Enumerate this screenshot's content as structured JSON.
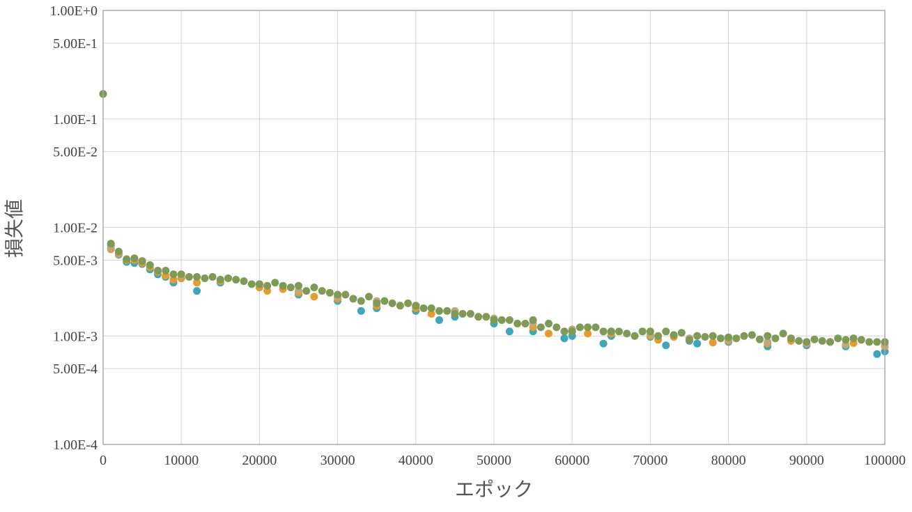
{
  "chart_data": {
    "type": "scatter",
    "xlabel": "エポック",
    "ylabel": "損失値",
    "xlim": [
      0,
      100000
    ],
    "ylim": [
      0.0001,
      1.0
    ],
    "y_scale": "log",
    "grid": true,
    "legend": "none",
    "x_ticks": [
      0,
      10000,
      20000,
      30000,
      40000,
      50000,
      60000,
      70000,
      80000,
      90000,
      100000
    ],
    "x_tick_labels": [
      "0",
      "10000",
      "20000",
      "30000",
      "40000",
      "50000",
      "60000",
      "70000",
      "80000",
      "90000",
      "100000"
    ],
    "y_ticks": [
      1.0,
      0.5,
      0.1,
      0.05,
      0.01,
      0.005,
      0.001,
      0.0005,
      0.0001
    ],
    "y_tick_labels": [
      "1.00E+0",
      "5.00E-1",
      "1.00E-1",
      "5.00E-2",
      "1.00E-2",
      "5.00E-3",
      "1.00E-3",
      "5.00E-4",
      "1.00E-4"
    ],
    "series": [
      {
        "color": "#3aa7be",
        "x": [
          0,
          1000,
          2000,
          3000,
          4000,
          5000,
          6000,
          7000,
          8000,
          9000,
          10000,
          12000,
          15000,
          20000,
          25000,
          30000,
          33000,
          35000,
          40000,
          43000,
          45000,
          50000,
          52000,
          55000,
          59000,
          60000,
          64000,
          65000,
          70000,
          72000,
          75000,
          76000,
          80000,
          85000,
          90000,
          95000,
          99000,
          100000
        ],
        "y": [
          0.17,
          0.0068,
          0.0056,
          0.0048,
          0.0047,
          0.0046,
          0.0041,
          0.0037,
          0.0035,
          0.0031,
          0.0034,
          0.0026,
          0.0031,
          0.0028,
          0.0024,
          0.0021,
          0.0017,
          0.0018,
          0.0017,
          0.0014,
          0.0015,
          0.0013,
          0.0011,
          0.0011,
          0.00095,
          0.001,
          0.00085,
          0.001,
          0.00098,
          0.00082,
          0.0009,
          0.00085,
          0.00088,
          0.0008,
          0.00082,
          0.0008,
          0.00068,
          0.00072
        ]
      },
      {
        "color": "#e89a2c",
        "x": [
          0,
          1000,
          2000,
          3000,
          4000,
          5000,
          6000,
          7000,
          8000,
          9000,
          10000,
          12000,
          15000,
          20000,
          21000,
          23000,
          25000,
          27000,
          30000,
          35000,
          40000,
          42000,
          45000,
          50000,
          55000,
          57000,
          60000,
          62000,
          65000,
          70000,
          71000,
          73000,
          75000,
          78000,
          80000,
          85000,
          88000,
          90000,
          93000,
          96000,
          100000
        ],
        "y": [
          0.17,
          0.0063,
          0.0057,
          0.005,
          0.005,
          0.0047,
          0.0043,
          0.0039,
          0.0036,
          0.0033,
          0.0034,
          0.0031,
          0.0032,
          0.0028,
          0.0026,
          0.0027,
          0.0025,
          0.0023,
          0.0022,
          0.0019,
          0.0018,
          0.0016,
          0.0016,
          0.0014,
          0.0012,
          0.00105,
          0.0011,
          0.00105,
          0.00105,
          0.001,
          0.00092,
          0.00098,
          0.00092,
          0.00087,
          0.0009,
          0.00085,
          0.0009,
          0.00085,
          0.00088,
          0.00086,
          0.0008
        ]
      },
      {
        "color": "#c2a77c",
        "x": [
          0,
          1000,
          2000,
          5000,
          10000,
          15000,
          20000,
          25000,
          30000,
          35000,
          40000,
          45000,
          50000,
          55000,
          60000,
          65000,
          70000,
          75000,
          80000,
          85000,
          90000,
          95000,
          100000
        ],
        "y": [
          0.17,
          0.0065,
          0.0058,
          0.0049,
          0.0036,
          0.0033,
          0.003,
          0.0026,
          0.0023,
          0.0021,
          0.0019,
          0.0017,
          0.00145,
          0.0013,
          0.00115,
          0.0011,
          0.00102,
          0.00095,
          0.00092,
          0.00088,
          0.00085,
          0.00083,
          0.00082
        ]
      },
      {
        "color": "#7f9a55",
        "x": [
          0,
          1000,
          2000,
          3000,
          4000,
          5000,
          6000,
          7000,
          8000,
          9000,
          10000,
          11000,
          12000,
          13000,
          14000,
          15000,
          16000,
          17000,
          18000,
          19000,
          20000,
          21000,
          22000,
          23000,
          24000,
          25000,
          26000,
          27000,
          28000,
          29000,
          30000,
          31000,
          32000,
          33000,
          34000,
          35000,
          36000,
          37000,
          38000,
          39000,
          40000,
          41000,
          42000,
          43000,
          44000,
          45000,
          46000,
          47000,
          48000,
          49000,
          50000,
          51000,
          52000,
          53000,
          54000,
          55000,
          56000,
          57000,
          58000,
          59000,
          60000,
          61000,
          62000,
          63000,
          64000,
          65000,
          66000,
          67000,
          68000,
          69000,
          70000,
          71000,
          72000,
          73000,
          74000,
          75000,
          76000,
          77000,
          78000,
          79000,
          80000,
          81000,
          82000,
          83000,
          84000,
          85000,
          86000,
          87000,
          88000,
          89000,
          90000,
          91000,
          92000,
          93000,
          94000,
          95000,
          96000,
          97000,
          98000,
          99000,
          100000
        ],
        "y": [
          0.17,
          0.0071,
          0.006,
          0.0051,
          0.0052,
          0.0049,
          0.0045,
          0.004,
          0.004,
          0.0037,
          0.0037,
          0.0035,
          0.0035,
          0.0034,
          0.0035,
          0.0033,
          0.0034,
          0.0033,
          0.0032,
          0.003,
          0.003,
          0.0029,
          0.0031,
          0.0029,
          0.0028,
          0.0029,
          0.0026,
          0.0028,
          0.0026,
          0.0025,
          0.0024,
          0.0024,
          0.0022,
          0.0021,
          0.0023,
          0.002,
          0.0021,
          0.002,
          0.0019,
          0.002,
          0.0019,
          0.0018,
          0.0018,
          0.0017,
          0.0017,
          0.0016,
          0.0016,
          0.0016,
          0.0015,
          0.0015,
          0.0014,
          0.0014,
          0.0014,
          0.0013,
          0.0013,
          0.0014,
          0.0012,
          0.0013,
          0.0012,
          0.0011,
          0.0011,
          0.0012,
          0.0012,
          0.0012,
          0.0011,
          0.0011,
          0.0011,
          0.00105,
          0.001,
          0.0011,
          0.0011,
          0.001,
          0.0011,
          0.00102,
          0.00107,
          0.00092,
          0.001,
          0.00098,
          0.001,
          0.00095,
          0.00097,
          0.00095,
          0.001,
          0.00102,
          0.00093,
          0.001,
          0.00095,
          0.00105,
          0.00095,
          0.0009,
          0.00088,
          0.00093,
          0.0009,
          0.00088,
          0.00095,
          0.00092,
          0.00095,
          0.00092,
          0.00088,
          0.00088,
          0.00088
        ]
      }
    ]
  }
}
